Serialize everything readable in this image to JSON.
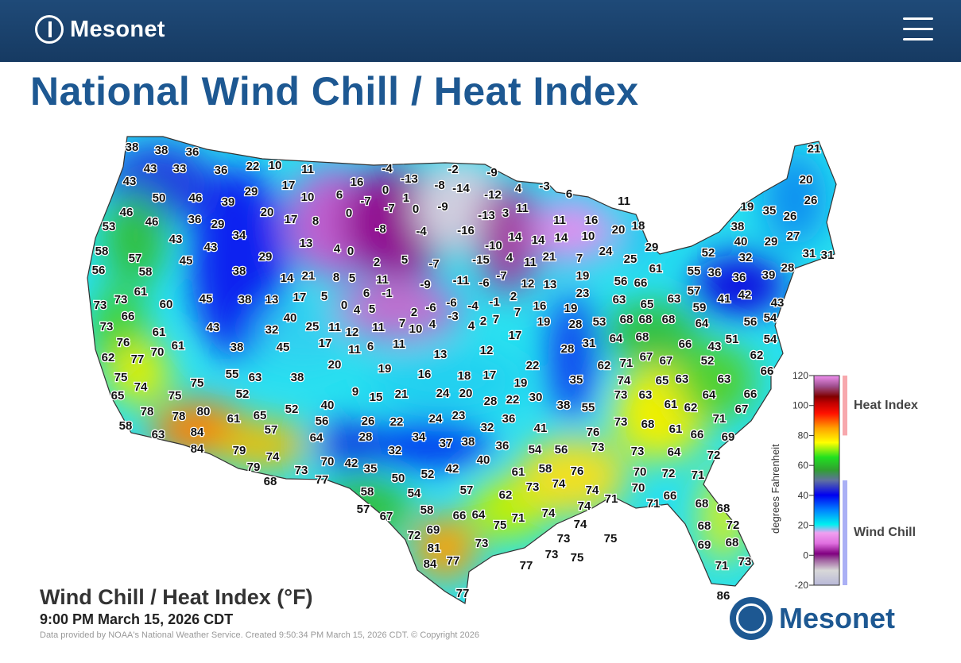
{
  "header": {
    "brand": "Mesonet",
    "menu_icon": "hamburger-menu-icon"
  },
  "page_title": "National Wind Chill / Heat Index",
  "map": {
    "title": "Wind Chill / Heat Index (°F)",
    "valid_time": "9:00 PM March 15, 2026 CDT",
    "source": "Data provided by NOAA's National Weather Service. Created 9:50:34 PM March 15, 2026 CDT. © Copyright 2026",
    "logo_text": "Mesonet",
    "values": [
      38,
      38,
      36,
      43,
      33,
      36,
      22,
      10,
      11,
      -4,
      -2,
      -9,
      21,
      43,
      -13,
      -8,
      -14,
      -12,
      4,
      -3,
      20,
      50,
      46,
      39,
      29,
      17,
      16,
      0,
      10,
      6,
      -7,
      1,
      0,
      -9,
      6,
      11,
      26,
      46,
      46,
      36,
      29,
      20,
      17,
      8,
      0,
      -7,
      -13,
      3,
      11,
      11,
      16,
      19,
      35,
      26,
      53,
      34,
      -8,
      -4,
      -16,
      20,
      18,
      38,
      27,
      58,
      43,
      43,
      13,
      4,
      0,
      -10,
      14,
      14,
      14,
      10,
      40,
      29,
      57,
      45,
      29,
      2,
      5,
      -7,
      -15,
      4,
      11,
      21,
      7,
      24,
      25,
      29,
      52,
      32,
      31,
      31,
      56,
      58,
      38,
      14,
      21,
      8,
      5,
      11,
      -9,
      -11,
      -6,
      -7,
      12,
      13,
      19,
      61,
      55,
      36,
      36,
      39,
      28,
      73,
      73,
      61,
      60,
      45,
      38,
      13,
      17,
      5,
      6,
      -1,
      2,
      56,
      66,
      63,
      57,
      41,
      42,
      43,
      66,
      0,
      4,
      5,
      2,
      -6,
      -6,
      -4,
      -1,
      7,
      16,
      19,
      23,
      63,
      65,
      59,
      54,
      73,
      40,
      25,
      11,
      12,
      11,
      7,
      10,
      4,
      -3,
      4,
      2,
      7,
      19,
      28,
      53,
      68,
      68,
      68,
      64,
      56,
      61,
      43,
      32,
      17,
      11,
      6,
      11,
      17,
      64,
      68,
      51,
      54,
      43,
      76,
      62,
      77,
      70,
      61,
      38,
      45,
      13,
      12,
      28,
      31,
      66,
      62,
      20,
      19,
      22,
      62,
      71,
      67,
      67,
      52,
      75,
      74,
      75,
      55,
      63,
      38,
      16,
      18,
      17,
      19,
      35,
      74,
      65,
      63,
      63,
      66,
      65,
      75,
      52,
      9,
      15,
      21,
      24,
      20,
      28,
      22,
      30,
      73,
      63,
      64,
      66,
      78,
      78,
      80,
      61,
      65,
      52,
      40,
      38,
      55,
      61,
      62,
      71,
      67,
      58,
      63,
      84,
      57,
      56,
      26,
      22,
      24,
      23,
      32,
      36,
      41,
      73,
      68,
      61,
      66,
      69,
      84,
      79,
      74,
      64,
      28,
      34,
      37,
      38,
      36,
      76,
      73,
      54,
      56,
      73,
      64,
      72,
      79,
      73,
      70,
      42,
      35,
      32,
      52,
      42,
      40,
      61,
      58,
      76,
      70,
      72,
      71,
      68,
      77,
      50,
      57,
      73,
      74,
      74,
      70,
      58,
      54,
      62,
      71,
      71,
      66,
      68,
      68,
      57,
      67,
      58,
      66,
      64,
      74,
      74,
      68,
      72,
      72,
      69,
      75,
      71,
      74,
      73,
      75,
      73,
      69,
      68,
      81,
      77,
      73,
      75,
      71,
      73,
      84,
      77,
      77,
      86
    ]
  },
  "legend": {
    "axis_label": "degrees Fahrenheit",
    "ticks": [
      "120",
      "100",
      "80",
      "60",
      "40",
      "20",
      "0",
      "-20"
    ],
    "heat_index_label": "Heat Index",
    "wind_chill_label": "Wind Chill",
    "heat_index_range": [
      80,
      120
    ],
    "wind_chill_range": [
      -20,
      50
    ],
    "scale_min": -20,
    "scale_max": 120,
    "colors": {
      "heat_bar": "#f7a8ad",
      "chill_bar": "#aab0f5"
    }
  },
  "colors": {
    "header_bg": "#1b4270",
    "title": "#1d5892"
  }
}
